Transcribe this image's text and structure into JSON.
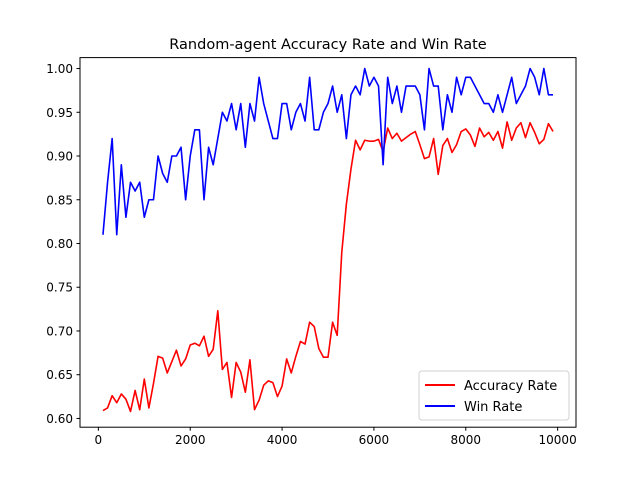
{
  "chart_data": {
    "type": "line",
    "title": "Random-agent Accuracy Rate and Win Rate",
    "xlabel": "",
    "ylabel": "",
    "xlim": [
      -400,
      10400
    ],
    "ylim": [
      0.59,
      1.0125
    ],
    "grid": false,
    "legend_position": "bottom-right",
    "x_ticks": [
      0,
      2000,
      4000,
      6000,
      8000,
      10000
    ],
    "x_tick_labels": [
      "0",
      "2000",
      "4000",
      "6000",
      "8000",
      "10000"
    ],
    "y_ticks": [
      0.6,
      0.65,
      0.7,
      0.75,
      0.8,
      0.85,
      0.9,
      0.95,
      1.0
    ],
    "y_tick_labels": [
      "0.60",
      "0.65",
      "0.70",
      "0.75",
      "0.80",
      "0.85",
      "0.90",
      "0.95",
      "1.00"
    ],
    "x": [
      100,
      200,
      300,
      400,
      500,
      600,
      700,
      800,
      900,
      1000,
      1100,
      1200,
      1300,
      1400,
      1500,
      1600,
      1700,
      1800,
      1900,
      2000,
      2100,
      2200,
      2300,
      2400,
      2500,
      2600,
      2700,
      2800,
      2900,
      3000,
      3100,
      3200,
      3300,
      3400,
      3500,
      3600,
      3700,
      3800,
      3900,
      4000,
      4100,
      4200,
      4300,
      4400,
      4500,
      4600,
      4700,
      4800,
      4900,
      5000,
      5100,
      5200,
      5300,
      5400,
      5500,
      5600,
      5700,
      5800,
      5900,
      6000,
      6100,
      6200,
      6300,
      6400,
      6500,
      6600,
      6700,
      6800,
      6900,
      7000,
      7100,
      7200,
      7300,
      7400,
      7500,
      7600,
      7700,
      7800,
      7900,
      8000,
      8100,
      8200,
      8300,
      8400,
      8500,
      8600,
      8700,
      8800,
      8900,
      9000,
      9100,
      9200,
      9300,
      9400,
      9500,
      9600,
      9700,
      9800,
      9900
    ],
    "series": [
      {
        "name": "Accuracy Rate",
        "color": "#ff0000",
        "values": [
          0.609,
          0.612,
          0.626,
          0.618,
          0.628,
          0.622,
          0.608,
          0.632,
          0.61,
          0.645,
          0.612,
          0.64,
          0.671,
          0.669,
          0.652,
          0.665,
          0.678,
          0.66,
          0.668,
          0.684,
          0.686,
          0.683,
          0.694,
          0.671,
          0.679,
          0.723,
          0.656,
          0.664,
          0.624,
          0.664,
          0.653,
          0.63,
          0.667,
          0.61,
          0.621,
          0.638,
          0.643,
          0.641,
          0.625,
          0.637,
          0.668,
          0.652,
          0.671,
          0.688,
          0.685,
          0.71,
          0.705,
          0.68,
          0.67,
          0.67,
          0.71,
          0.695,
          0.79,
          0.845,
          0.885,
          0.918,
          0.907,
          0.918,
          0.917,
          0.917,
          0.919,
          0.905,
          0.932,
          0.92,
          0.926,
          0.917,
          0.921,
          0.925,
          0.928,
          0.913,
          0.897,
          0.899,
          0.92,
          0.879,
          0.912,
          0.92,
          0.904,
          0.913,
          0.928,
          0.931,
          0.924,
          0.911,
          0.932,
          0.922,
          0.927,
          0.918,
          0.928,
          0.909,
          0.939,
          0.918,
          0.932,
          0.938,
          0.921,
          0.938,
          0.927,
          0.914,
          0.919,
          0.937,
          0.928
        ]
      },
      {
        "name": "Win Rate",
        "color": "#0000ff",
        "values": [
          0.81,
          0.87,
          0.92,
          0.81,
          0.89,
          0.83,
          0.87,
          0.86,
          0.87,
          0.83,
          0.85,
          0.85,
          0.9,
          0.88,
          0.87,
          0.9,
          0.9,
          0.91,
          0.85,
          0.9,
          0.93,
          0.93,
          0.85,
          0.91,
          0.89,
          0.92,
          0.95,
          0.94,
          0.96,
          0.93,
          0.96,
          0.91,
          0.96,
          0.94,
          0.99,
          0.96,
          0.94,
          0.92,
          0.92,
          0.96,
          0.96,
          0.93,
          0.95,
          0.96,
          0.94,
          0.99,
          0.93,
          0.93,
          0.95,
          0.96,
          0.98,
          0.95,
          0.97,
          0.92,
          0.97,
          0.98,
          0.97,
          1.0,
          0.98,
          0.99,
          0.98,
          0.89,
          0.99,
          0.96,
          0.98,
          0.95,
          0.98,
          0.98,
          0.98,
          0.97,
          0.93,
          1.0,
          0.98,
          0.98,
          0.93,
          0.97,
          0.95,
          0.99,
          0.97,
          0.99,
          0.99,
          0.98,
          0.97,
          0.96,
          0.96,
          0.95,
          0.97,
          0.95,
          0.97,
          0.99,
          0.96,
          0.97,
          0.98,
          1.0,
          0.99,
          0.97,
          1.0,
          0.97,
          0.97
        ]
      }
    ]
  }
}
